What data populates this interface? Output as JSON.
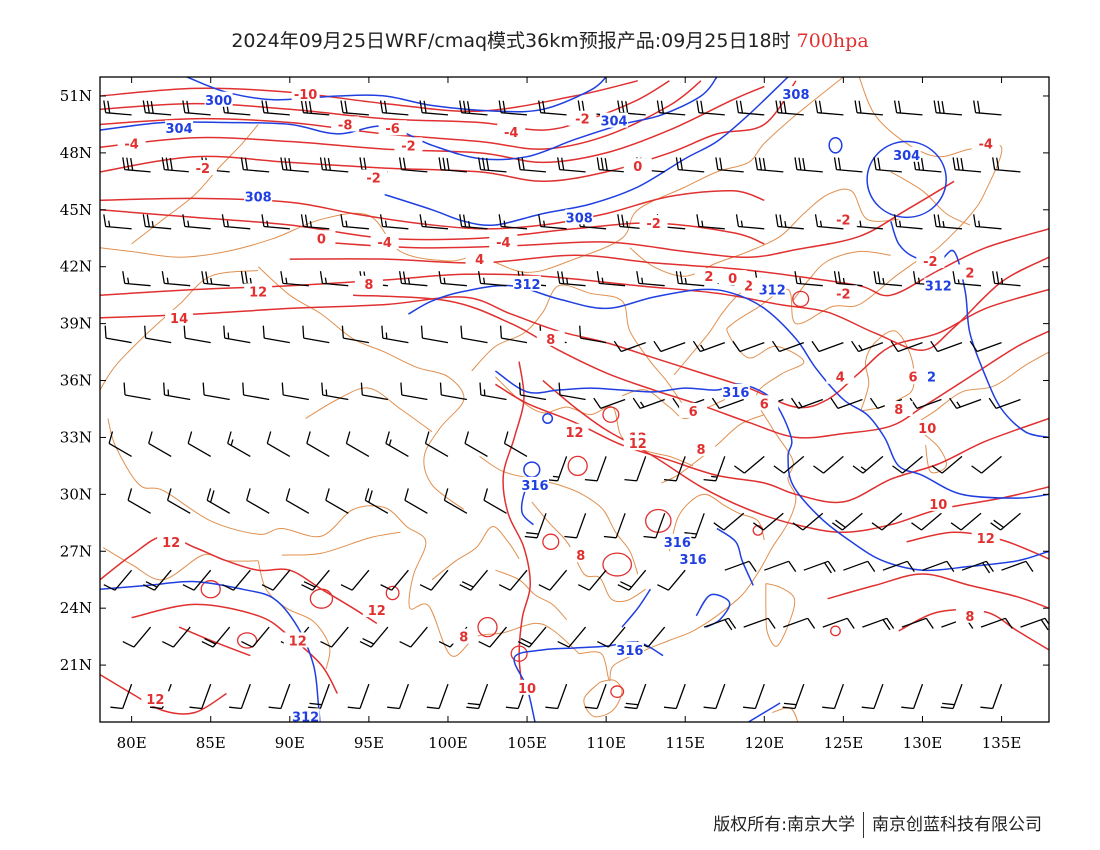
{
  "title": {
    "main": "2024年09月25日WRF/cmaq模式36km预报产品:09月25日18时",
    "level": "700hpa"
  },
  "map": {
    "projection": "lat-lon",
    "lon_range": [
      78,
      138
    ],
    "lat_range": [
      18,
      52
    ],
    "lat_ticks": [
      "51N",
      "48N",
      "45N",
      "42N",
      "39N",
      "36N",
      "33N",
      "30N",
      "27N",
      "24N",
      "21N"
    ],
    "lon_ticks": [
      "80E",
      "85E",
      "90E",
      "95E",
      "100E",
      "105E",
      "110E",
      "115E",
      "120E",
      "125E",
      "130E",
      "135E"
    ],
    "colors": {
      "height_contour": "#1f3fe0",
      "temperature_contour": "#e03030",
      "boundary": "#e09050",
      "wind_barb": "#000000",
      "frame": "#000000"
    },
    "height_labels": [
      "300",
      "304",
      "308",
      "312",
      "316"
    ],
    "temperature_labels": [
      "-10",
      "-8",
      "-6",
      "-4",
      "-2",
      "0",
      "2",
      "4",
      "6",
      "8",
      "10",
      "12",
      "14"
    ]
  },
  "footer": {
    "copyright": "版权所有:南京大学",
    "company": "南京创蓝科技有限公司"
  }
}
